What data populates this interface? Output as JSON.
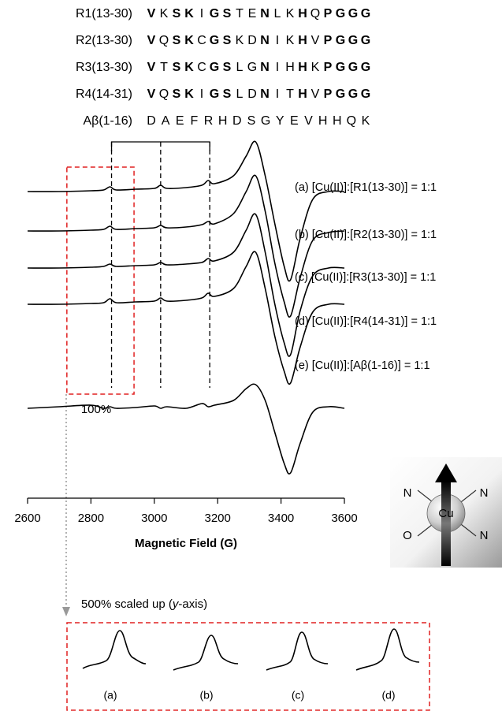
{
  "sequences": [
    {
      "name": "R1(13-30)",
      "residues": [
        {
          "text": "V",
          "bold": true
        },
        {
          "text": "K",
          "bold": false
        },
        {
          "text": "S",
          "bold": true
        },
        {
          "text": "K",
          "bold": true
        },
        {
          "text": "I",
          "bold": false
        },
        {
          "text": "G",
          "bold": true
        },
        {
          "text": "S",
          "bold": true
        },
        {
          "text": "T",
          "bold": false
        },
        {
          "text": "E",
          "bold": false
        },
        {
          "text": "N",
          "bold": true
        },
        {
          "text": "L",
          "bold": false
        },
        {
          "text": "K",
          "bold": false
        },
        {
          "text": "H",
          "bold": true
        },
        {
          "text": "Q",
          "bold": false
        },
        {
          "text": "P",
          "bold": true
        },
        {
          "text": "G",
          "bold": true
        },
        {
          "text": "G",
          "bold": true
        },
        {
          "text": "G",
          "bold": true
        }
      ]
    },
    {
      "name": "R2(13-30)",
      "residues": [
        {
          "text": "V",
          "bold": true
        },
        {
          "text": "Q",
          "bold": false
        },
        {
          "text": "S",
          "bold": true
        },
        {
          "text": "K",
          "bold": true
        },
        {
          "text": "C",
          "bold": false
        },
        {
          "text": "G",
          "bold": true
        },
        {
          "text": "S",
          "bold": true
        },
        {
          "text": "K",
          "bold": false
        },
        {
          "text": "D",
          "bold": false
        },
        {
          "text": "N",
          "bold": true
        },
        {
          "text": "I",
          "bold": false
        },
        {
          "text": "K",
          "bold": false
        },
        {
          "text": "H",
          "bold": true
        },
        {
          "text": "V",
          "bold": false
        },
        {
          "text": "P",
          "bold": true
        },
        {
          "text": "G",
          "bold": true
        },
        {
          "text": "G",
          "bold": true
        },
        {
          "text": "G",
          "bold": true
        }
      ]
    },
    {
      "name": "R3(13-30)",
      "residues": [
        {
          "text": "V",
          "bold": true
        },
        {
          "text": "T",
          "bold": false
        },
        {
          "text": "S",
          "bold": true
        },
        {
          "text": "K",
          "bold": true
        },
        {
          "text": "C",
          "bold": false
        },
        {
          "text": "G",
          "bold": true
        },
        {
          "text": "S",
          "bold": true
        },
        {
          "text": "L",
          "bold": false
        },
        {
          "text": "G",
          "bold": false
        },
        {
          "text": "N",
          "bold": true
        },
        {
          "text": "I",
          "bold": false
        },
        {
          "text": "H",
          "bold": false
        },
        {
          "text": "H",
          "bold": true
        },
        {
          "text": "K",
          "bold": false
        },
        {
          "text": "P",
          "bold": true
        },
        {
          "text": "G",
          "bold": true
        },
        {
          "text": "G",
          "bold": true
        },
        {
          "text": "G",
          "bold": true
        }
      ]
    },
    {
      "name": "R4(14-31)",
      "residues": [
        {
          "text": "V",
          "bold": true
        },
        {
          "text": "Q",
          "bold": false
        },
        {
          "text": "S",
          "bold": true
        },
        {
          "text": "K",
          "bold": true
        },
        {
          "text": "I",
          "bold": false
        },
        {
          "text": "G",
          "bold": true
        },
        {
          "text": "S",
          "bold": true
        },
        {
          "text": "L",
          "bold": false
        },
        {
          "text": "D",
          "bold": false
        },
        {
          "text": "N",
          "bold": true
        },
        {
          "text": "I",
          "bold": false
        },
        {
          "text": "T",
          "bold": false
        },
        {
          "text": "H",
          "bold": true
        },
        {
          "text": "V",
          "bold": false
        },
        {
          "text": "P",
          "bold": true
        },
        {
          "text": "G",
          "bold": true
        },
        {
          "text": "G",
          "bold": true
        },
        {
          "text": "G",
          "bold": true
        }
      ]
    },
    {
      "name": "Aβ(1-16)",
      "residues": [
        {
          "text": "D",
          "bold": false
        },
        {
          "text": "A",
          "bold": false
        },
        {
          "text": "E",
          "bold": false
        },
        {
          "text": "F",
          "bold": false
        },
        {
          "text": "R",
          "bold": false
        },
        {
          "text": "H",
          "bold": false
        },
        {
          "text": "D",
          "bold": false
        },
        {
          "text": "S",
          "bold": false
        },
        {
          "text": "G",
          "bold": false
        },
        {
          "text": "Y",
          "bold": false
        },
        {
          "text": "E",
          "bold": false
        },
        {
          "text": "V",
          "bold": false
        },
        {
          "text": "H",
          "bold": false
        },
        {
          "text": "H",
          "bold": false
        },
        {
          "text": "Q",
          "bold": false
        },
        {
          "text": "K",
          "bold": false
        }
      ]
    }
  ],
  "chart_data": {
    "type": "line",
    "x_label": "Magnetic Field (G)",
    "x": [
      2600,
      2700,
      2800,
      2840,
      2860,
      2880,
      2940,
      3000,
      3020,
      3040,
      3100,
      3150,
      3170,
      3190,
      3250,
      3290,
      3320,
      3350,
      3380,
      3410,
      3430,
      3460,
      3500,
      3550,
      3600
    ],
    "xlim": [
      2600,
      3600
    ],
    "xticks": [
      2600,
      2800,
      3000,
      3200,
      3400,
      3600
    ],
    "ylim": [
      -130,
      70
    ],
    "series": [
      {
        "name": "(a) [Cu(II)]:[R1(13-30)] = 1:1",
        "color": "#000000",
        "values": [
          0,
          0,
          1,
          2,
          6,
          2,
          3,
          4,
          8,
          4,
          5,
          8,
          14,
          10,
          20,
          45,
          63,
          20,
          -40,
          -95,
          -112,
          -60,
          -10,
          0,
          0
        ]
      },
      {
        "name": "(b) [Cu(II)]:[R2(13-30)] = 1:1",
        "color": "#000000",
        "values": [
          0,
          0,
          1,
          2,
          6,
          2,
          3,
          4,
          7,
          4,
          5,
          8,
          12,
          9,
          22,
          50,
          70,
          25,
          -40,
          -90,
          -108,
          -60,
          -12,
          -2,
          0
        ]
      },
      {
        "name": "(c) [Cu(II)]:[R3(13-30)] = 1:1",
        "color": "#000000",
        "values": [
          0,
          0,
          1,
          2,
          5,
          2,
          3,
          4,
          7,
          4,
          5,
          7,
          12,
          9,
          20,
          48,
          68,
          20,
          -45,
          -95,
          -110,
          -55,
          -10,
          0,
          0
        ]
      },
      {
        "name": "(d) [Cu(II)]:[R4(14-31)] = 1:1",
        "color": "#000000",
        "values": [
          0,
          0,
          1,
          2,
          7,
          2,
          3,
          4,
          8,
          4,
          5,
          8,
          14,
          10,
          20,
          48,
          66,
          20,
          -40,
          -85,
          -100,
          -55,
          -10,
          0,
          0
        ]
      },
      {
        "name": "(e) [Cu(II)]:[Aβ(1-16)] = 1:1",
        "color": "#000000",
        "values": [
          0,
          2,
          4,
          0,
          2,
          0,
          1,
          3,
          0,
          2,
          0,
          6,
          2,
          4,
          10,
          25,
          30,
          10,
          -30,
          -70,
          -82,
          -45,
          -5,
          2,
          0
        ]
      }
    ],
    "reference_lines": [
      2865,
      3020,
      3175
    ],
    "highlight_range": [
      2724,
      2936
    ],
    "highlight_color": "#e02020",
    "annotation": "100%",
    "inset_caption": [
      "500% scaled up (",
      "y",
      "-axis)"
    ],
    "inset_labels": [
      "(a)",
      "(b)",
      "(c)",
      "(d)"
    ]
  },
  "icon": {
    "labels": [
      "N",
      "N",
      "O",
      "N",
      "Cu"
    ]
  }
}
